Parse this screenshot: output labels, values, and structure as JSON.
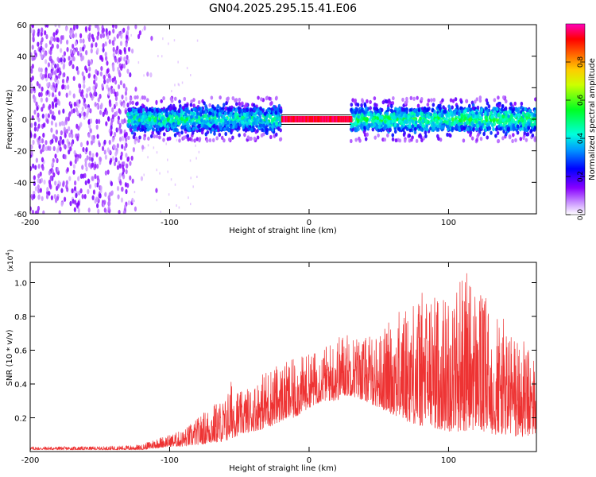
{
  "title": "GN04.2025.295.15.41.E06",
  "chart_data": [
    {
      "type": "heatmap",
      "xlabel": "Height of straight line (km)",
      "ylabel": "Frequency (Hz)",
      "xlim": [
        -200,
        163
      ],
      "ylim": [
        -60,
        60
      ],
      "xticks": [
        -200,
        -100,
        0,
        100
      ],
      "yticks": [
        60,
        40,
        20,
        0,
        -20,
        -40,
        -60
      ],
      "grid": false,
      "colorbar": {
        "label": "Normalized spectral amplitude",
        "range": [
          0,
          1
        ],
        "ticks": [
          "0.0",
          "0.2",
          "0.4",
          "0.6",
          "0.8"
        ],
        "colors": [
          "#ffffff",
          "#cc99ff",
          "#7700ff",
          "#0000ff",
          "#00aaff",
          "#00ffcc",
          "#00ff00",
          "#ffff00",
          "#ff8800",
          "#ff0000",
          "#ff00aa"
        ]
      },
      "regions": [
        {
          "x_range": [
            -200,
            -130
          ],
          "freq_range": [
            -60,
            60
          ],
          "amplitude": 0.15,
          "pattern": "broadband noise"
        },
        {
          "x_range": [
            -130,
            -20
          ],
          "freq_range": [
            -15,
            15
          ],
          "amplitude": 0.35,
          "pattern": "band near 0 Hz"
        },
        {
          "x_range": [
            -20,
            30
          ],
          "freq_range": [
            -2,
            2
          ],
          "amplitude": 1.0,
          "pattern": "narrow line near 0 Hz"
        },
        {
          "x_range": [
            30,
            163
          ],
          "freq_range": [
            -15,
            15
          ],
          "amplitude": 0.45,
          "pattern": "band near 0 Hz"
        }
      ]
    },
    {
      "type": "line",
      "xlabel": "Height of straight line (km)",
      "ylabel": "SNR (10 * v/v)",
      "yscale_label": "(x10",
      "yscale_exp": "4",
      "xlim": [
        -200,
        163
      ],
      "ylim": [
        0,
        1.12
      ],
      "xticks": [
        -200,
        -100,
        0,
        100
      ],
      "yticks": [
        0.2,
        0.4,
        0.6,
        0.8,
        1.0
      ],
      "ytick_labels": [
        "0.2",
        "0.4",
        "0.6",
        "0.8",
        "1.0"
      ],
      "grid": false,
      "series_color": "#ee3333",
      "envelope": {
        "x": [
          -200,
          -150,
          -120,
          -110,
          -100,
          -90,
          -80,
          -70,
          -60,
          -55,
          -50,
          -40,
          -30,
          -20,
          -10,
          0,
          10,
          20,
          25,
          30,
          40,
          50,
          60,
          70,
          80,
          90,
          100,
          110,
          120,
          130,
          140,
          150,
          163
        ],
        "min": [
          0.01,
          0.01,
          0.01,
          0.02,
          0.03,
          0.03,
          0.04,
          0.05,
          0.06,
          0.08,
          0.1,
          0.12,
          0.14,
          0.18,
          0.2,
          0.26,
          0.3,
          0.3,
          0.33,
          0.33,
          0.3,
          0.26,
          0.22,
          0.18,
          0.15,
          0.14,
          0.12,
          0.12,
          0.13,
          0.1,
          0.1,
          0.08,
          0.1
        ],
        "max": [
          0.03,
          0.03,
          0.04,
          0.08,
          0.1,
          0.13,
          0.2,
          0.28,
          0.32,
          0.45,
          0.35,
          0.4,
          0.5,
          0.52,
          0.55,
          0.58,
          0.62,
          0.68,
          0.72,
          0.7,
          0.68,
          0.7,
          0.8,
          0.88,
          0.95,
          0.95,
          0.92,
          1.1,
          0.98,
          0.88,
          0.78,
          0.7,
          0.55
        ]
      }
    }
  ]
}
